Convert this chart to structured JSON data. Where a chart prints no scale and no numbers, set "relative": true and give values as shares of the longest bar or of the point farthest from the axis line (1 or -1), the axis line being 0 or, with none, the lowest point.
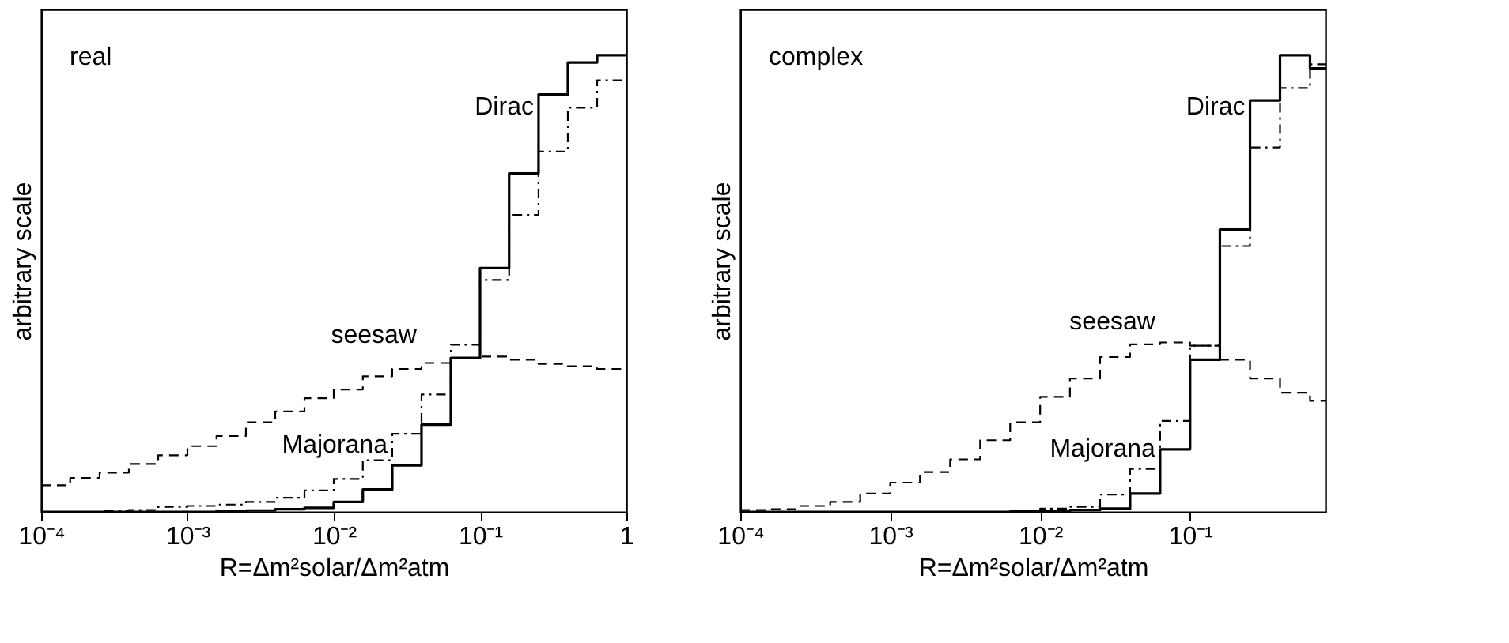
{
  "chart_data": [
    {
      "type": "step",
      "relative": true,
      "log": "x",
      "grid": false,
      "tick_labels": "x",
      "xlabel": "R=Δm²solar/Δm²atm",
      "ylabel": "arbitrary scale",
      "xlim": [
        0.0001,
        1
      ],
      "xticks": [
        {
          "value": 0.0001,
          "label": "10⁻⁴"
        },
        {
          "value": 0.001,
          "label": "10⁻³"
        },
        {
          "value": 0.01,
          "label": "10⁻²"
        },
        {
          "value": 0.1,
          "label": "10⁻¹"
        },
        1
      ],
      "annotations": [
        "real"
      ],
      "x": [
        0.0001,
        0.000158,
        0.000251,
        0.000398,
        0.000631,
        0.001,
        0.00158,
        0.00251,
        0.00398,
        0.00631,
        0.01,
        0.0158,
        0.0251,
        0.0398,
        0.0631,
        0.1,
        0.158,
        0.251,
        0.398,
        0.631,
        1
      ],
      "series": [
        {
          "name": "Dirac",
          "color": "#000000",
          "line_style": "solid",
          "values": [
            0,
            0,
            0,
            0,
            0,
            0,
            0.002,
            0.003,
            0.006,
            0.009,
            0.022,
            0.049,
            0.102,
            0.191,
            0.337,
            0.534,
            0.741,
            0.914,
            0.984,
            1,
            1
          ]
        },
        {
          "name": "seesaw",
          "color": "#000000",
          "line_style": "dashed",
          "values": [
            0.058,
            0.074,
            0.086,
            0.105,
            0.124,
            0.144,
            0.166,
            0.196,
            0.22,
            0.249,
            0.268,
            0.297,
            0.313,
            0.326,
            0.337,
            0.34,
            0.333,
            0.324,
            0.319,
            0.313,
            0.313
          ]
        },
        {
          "name": "Majorana",
          "color": "#000000",
          "line_style": "dotted",
          "values": [
            0,
            0,
            0.002,
            0.004,
            0.011,
            0.013,
            0.016,
            0.022,
            0.031,
            0.047,
            0.072,
            0.113,
            0.171,
            0.257,
            0.366,
            0.508,
            0.65,
            0.789,
            0.885,
            0.945,
            0.945
          ]
        }
      ]
    },
    {
      "type": "step",
      "relative": true,
      "log": "x",
      "grid": false,
      "tick_labels": "x",
      "xlabel": "R=Δm²solar/Δm²atm",
      "ylabel": "arbitrary scale",
      "xlim": [
        0.0001,
        0.8
      ],
      "xticks": [
        {
          "value": 0.0001,
          "label": "10⁻⁴"
        },
        {
          "value": 0.001,
          "label": "10⁻³"
        },
        {
          "value": 0.01,
          "label": "10⁻²"
        },
        {
          "value": 0.1,
          "label": "10⁻¹"
        }
      ],
      "annotations": [
        "complex"
      ],
      "x": [
        0.0001,
        0.000158,
        0.000251,
        0.000398,
        0.000631,
        0.001,
        0.00158,
        0.00251,
        0.00398,
        0.00631,
        0.01,
        0.0158,
        0.0251,
        0.0398,
        0.0631,
        0.1,
        0.158,
        0.251,
        0.398,
        0.631,
        0.8
      ],
      "series": [
        {
          "name": "Dirac",
          "color": "#000000",
          "line_style": "solid",
          "values": [
            0,
            0,
            0,
            0,
            0,
            0,
            0,
            0,
            0,
            0.001,
            0.002,
            0.004,
            0.007,
            0.04,
            0.137,
            0.333,
            0.618,
            0.901,
            1,
            0.971,
            0.971
          ]
        },
        {
          "name": "seesaw",
          "color": "#000000",
          "line_style": "dashed",
          "values": [
            0.004,
            0.006,
            0.013,
            0.022,
            0.04,
            0.064,
            0.087,
            0.115,
            0.157,
            0.196,
            0.252,
            0.292,
            0.339,
            0.367,
            0.371,
            0.364,
            0.333,
            0.292,
            0.261,
            0.243,
            0.243
          ]
        },
        {
          "name": "Majorana",
          "color": "#000000",
          "line_style": "dotted",
          "values": [
            0,
            0,
            0,
            0,
            0,
            0,
            0,
            0,
            0,
            0.001,
            0.007,
            0.011,
            0.038,
            0.094,
            0.199,
            0.364,
            0.582,
            0.798,
            0.928,
            0.98,
            0.98
          ]
        }
      ]
    }
  ]
}
